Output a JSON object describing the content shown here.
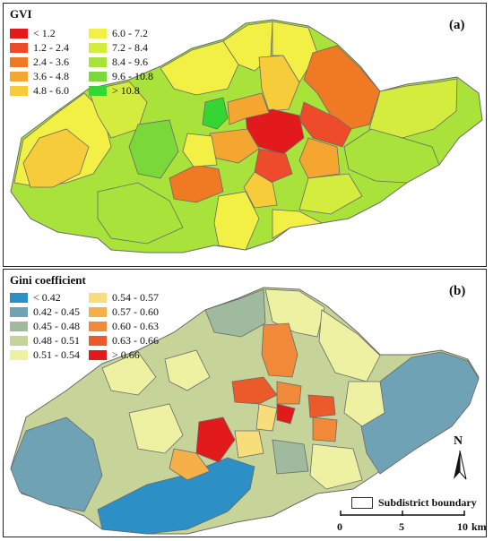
{
  "panel_a": {
    "title": "GVI",
    "label": "(a)",
    "legend": [
      {
        "label": "< 1.2",
        "color": "#e31a1c"
      },
      {
        "label": "6.0 - 7.2",
        "color": "#f3f045"
      },
      {
        "label": "1.2 - 2.4",
        "color": "#ee4b2b"
      },
      {
        "label": "7.2 - 8.4",
        "color": "#d4ec3e"
      },
      {
        "label": "2.4 - 3.6",
        "color": "#f07a24"
      },
      {
        "label": "8.4 - 9.6",
        "color": "#a8e23a"
      },
      {
        "label": "3.6 - 4.8",
        "color": "#f5a630"
      },
      {
        "label": "9.6 - 10.8",
        "color": "#7bd83a"
      },
      {
        "label": "4.8 - 6.0",
        "color": "#f7cc3a"
      },
      {
        "label": "> 10.8",
        "color": "#33d633"
      }
    ]
  },
  "panel_b": {
    "title": "Gini coefficient",
    "label": "(b)",
    "legend": [
      {
        "label": "< 0.42",
        "color": "#2c8fc6"
      },
      {
        "label": "0.54 - 0.57",
        "color": "#f8de7a"
      },
      {
        "label": "0.42 - 0.45",
        "color": "#6fa2b4"
      },
      {
        "label": "0.57 - 0.60",
        "color": "#f5b04a"
      },
      {
        "label": "0.45 - 0.48",
        "color": "#9fba9e"
      },
      {
        "label": "0.60 - 0.63",
        "color": "#f08a38"
      },
      {
        "label": "0.48 - 0.51",
        "color": "#c6d49a"
      },
      {
        "label": "0.63 - 0.66",
        "color": "#ea5a2a"
      },
      {
        "label": "0.51 - 0.54",
        "color": "#eef0a2"
      },
      {
        "label": "> 0.66",
        "color": "#e31a1c"
      }
    ],
    "north_label": "N",
    "boundary_label": "Subdistrict boundary",
    "scale": {
      "ticks": [
        "0",
        "5",
        "10"
      ],
      "unit": "km"
    }
  }
}
